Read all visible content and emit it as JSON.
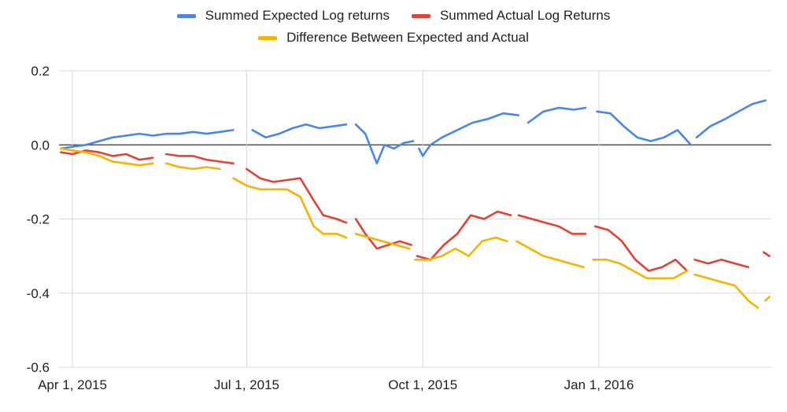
{
  "chart_data": {
    "type": "line",
    "title": "",
    "xlabel": "",
    "ylabel": "",
    "ylim": [
      -0.6,
      0.2
    ],
    "yticks": [
      0.2,
      0.0,
      -0.2,
      -0.4,
      -0.6
    ],
    "ytick_labels": [
      "0.2",
      "0.0",
      "-0.2",
      "-0.4",
      "-0.6"
    ],
    "xlim": [
      "2015-03-25",
      "2016-03-31"
    ],
    "xticks": [
      "2015-04-01",
      "2015-07-01",
      "2015-10-01",
      "2016-01-01"
    ],
    "xtick_labels": [
      "Apr 1, 2015",
      "Jul 1, 2015",
      "Oct 1, 2015",
      "Jan 1, 2016"
    ],
    "grid": true,
    "legend_position": "top",
    "series": [
      {
        "name": "Summed Expected Log returns",
        "color": "#4a86e8",
        "points": [
          [
            "2015-03-26",
            -0.01
          ],
          [
            "2015-04-01",
            -0.005
          ],
          [
            "2015-04-08",
            0.0
          ],
          [
            "2015-04-15",
            0.01
          ],
          [
            "2015-04-22",
            0.02
          ],
          [
            "2015-04-29",
            0.025
          ],
          [
            "2015-05-06",
            0.03
          ],
          [
            "2015-05-13",
            0.025
          ],
          [
            "2015-05-20",
            0.03
          ],
          [
            "2015-05-27",
            0.03
          ],
          [
            "2015-06-03",
            0.035
          ],
          [
            "2015-06-10",
            0.03
          ],
          [
            "2015-06-17",
            0.035
          ],
          [
            "2015-06-24",
            0.04
          ],
          null,
          [
            "2015-07-04",
            0.04
          ],
          [
            "2015-07-11",
            0.02
          ],
          [
            "2015-07-18",
            0.03
          ],
          [
            "2015-07-25",
            0.045
          ],
          [
            "2015-08-01",
            0.055
          ],
          [
            "2015-08-08",
            0.045
          ],
          [
            "2015-08-15",
            0.05
          ],
          [
            "2015-08-22",
            0.055
          ],
          null,
          [
            "2015-08-27",
            0.055
          ],
          [
            "2015-09-01",
            0.03
          ],
          [
            "2015-09-04",
            -0.01
          ],
          [
            "2015-09-07",
            -0.05
          ],
          [
            "2015-09-11",
            0.0
          ],
          [
            "2015-09-16",
            -0.01
          ],
          [
            "2015-09-21",
            0.005
          ],
          [
            "2015-09-26",
            0.01
          ],
          null,
          [
            "2015-09-29",
            -0.01
          ],
          [
            "2015-10-01",
            -0.03
          ],
          [
            "2015-10-05",
            0.0
          ],
          [
            "2015-10-11",
            0.02
          ],
          [
            "2015-10-19",
            0.04
          ],
          [
            "2015-10-27",
            0.06
          ],
          [
            "2015-11-04",
            0.07
          ],
          [
            "2015-11-12",
            0.085
          ],
          [
            "2015-11-20",
            0.08
          ],
          null,
          [
            "2015-11-25",
            0.06
          ],
          [
            "2015-12-03",
            0.09
          ],
          [
            "2015-12-11",
            0.1
          ],
          [
            "2015-12-19",
            0.095
          ],
          [
            "2015-12-25",
            0.1
          ],
          null,
          [
            "2015-12-31",
            0.09
          ],
          [
            "2016-01-07",
            0.085
          ],
          [
            "2016-01-14",
            0.05
          ],
          [
            "2016-01-21",
            0.02
          ],
          [
            "2016-01-28",
            0.01
          ],
          [
            "2016-02-04",
            0.02
          ],
          [
            "2016-02-11",
            0.04
          ],
          [
            "2016-02-18",
            0.0
          ],
          null,
          [
            "2016-02-21",
            0.02
          ],
          [
            "2016-02-28",
            0.05
          ],
          [
            "2016-03-07",
            0.07
          ],
          [
            "2016-03-14",
            0.09
          ],
          [
            "2016-03-21",
            0.11
          ],
          [
            "2016-03-28",
            0.12
          ]
        ]
      },
      {
        "name": "Summed Actual Log Returns",
        "color": "#e04336",
        "points": [
          [
            "2015-03-26",
            -0.02
          ],
          [
            "2015-04-01",
            -0.025
          ],
          [
            "2015-04-08",
            -0.015
          ],
          [
            "2015-04-15",
            -0.02
          ],
          [
            "2015-04-22",
            -0.03
          ],
          [
            "2015-04-29",
            -0.025
          ],
          [
            "2015-05-06",
            -0.04
          ],
          [
            "2015-05-13",
            -0.035
          ],
          null,
          [
            "2015-05-20",
            -0.025
          ],
          [
            "2015-05-27",
            -0.03
          ],
          [
            "2015-06-03",
            -0.03
          ],
          [
            "2015-06-10",
            -0.04
          ],
          [
            "2015-06-17",
            -0.045
          ],
          [
            "2015-06-24",
            -0.05
          ],
          null,
          [
            "2015-07-01",
            -0.065
          ],
          [
            "2015-07-08",
            -0.09
          ],
          [
            "2015-07-15",
            -0.1
          ],
          [
            "2015-07-22",
            -0.095
          ],
          [
            "2015-07-29",
            -0.09
          ],
          [
            "2015-08-05",
            -0.15
          ],
          [
            "2015-08-10",
            -0.19
          ],
          [
            "2015-08-17",
            -0.2
          ],
          [
            "2015-08-22",
            -0.21
          ],
          null,
          [
            "2015-08-27",
            -0.2
          ],
          [
            "2015-09-01",
            -0.24
          ],
          [
            "2015-09-07",
            -0.28
          ],
          [
            "2015-09-13",
            -0.27
          ],
          [
            "2015-09-19",
            -0.26
          ],
          [
            "2015-09-25",
            -0.27
          ],
          null,
          [
            "2015-09-28",
            -0.3
          ],
          [
            "2015-10-05",
            -0.31
          ],
          [
            "2015-10-12",
            -0.27
          ],
          [
            "2015-10-19",
            -0.24
          ],
          [
            "2015-10-26",
            -0.19
          ],
          [
            "2015-11-02",
            -0.2
          ],
          [
            "2015-11-09",
            -0.18
          ],
          [
            "2015-11-16",
            -0.19
          ],
          null,
          [
            "2015-11-20",
            -0.19
          ],
          [
            "2015-11-27",
            -0.2
          ],
          [
            "2015-12-04",
            -0.21
          ],
          [
            "2015-12-11",
            -0.22
          ],
          [
            "2015-12-18",
            -0.24
          ],
          [
            "2015-12-25",
            -0.24
          ],
          null,
          [
            "2015-12-30",
            -0.22
          ],
          [
            "2016-01-06",
            -0.23
          ],
          [
            "2016-01-13",
            -0.26
          ],
          [
            "2016-01-20",
            -0.31
          ],
          [
            "2016-01-27",
            -0.34
          ],
          [
            "2016-02-03",
            -0.33
          ],
          [
            "2016-02-10",
            -0.31
          ],
          [
            "2016-02-16",
            -0.34
          ],
          null,
          [
            "2016-02-20",
            -0.31
          ],
          [
            "2016-02-27",
            -0.32
          ],
          [
            "2016-03-05",
            -0.31
          ],
          [
            "2016-03-12",
            -0.32
          ],
          [
            "2016-03-19",
            -0.33
          ],
          null,
          [
            "2016-03-27",
            -0.29
          ],
          [
            "2016-03-30",
            -0.3
          ]
        ]
      },
      {
        "name": "Difference Between Expected and Actual",
        "color": "#f4b400",
        "points": [
          [
            "2015-03-26",
            -0.01
          ],
          [
            "2015-04-01",
            -0.015
          ],
          [
            "2015-04-08",
            -0.02
          ],
          [
            "2015-04-15",
            -0.03
          ],
          [
            "2015-04-22",
            -0.045
          ],
          [
            "2015-04-29",
            -0.05
          ],
          [
            "2015-05-06",
            -0.055
          ],
          [
            "2015-05-13",
            -0.05
          ],
          null,
          [
            "2015-05-20",
            -0.05
          ],
          [
            "2015-05-27",
            -0.06
          ],
          [
            "2015-06-03",
            -0.065
          ],
          [
            "2015-06-10",
            -0.06
          ],
          [
            "2015-06-17",
            -0.065
          ],
          null,
          [
            "2015-06-24",
            -0.09
          ],
          [
            "2015-07-01",
            -0.11
          ],
          [
            "2015-07-08",
            -0.12
          ],
          [
            "2015-07-15",
            -0.12
          ],
          [
            "2015-07-22",
            -0.12
          ],
          [
            "2015-07-29",
            -0.14
          ],
          [
            "2015-08-05",
            -0.22
          ],
          [
            "2015-08-10",
            -0.24
          ],
          [
            "2015-08-17",
            -0.24
          ],
          [
            "2015-08-22",
            -0.25
          ],
          null,
          [
            "2015-08-27",
            -0.24
          ],
          [
            "2015-09-03",
            -0.25
          ],
          [
            "2015-09-10",
            -0.26
          ],
          [
            "2015-09-17",
            -0.27
          ],
          [
            "2015-09-24",
            -0.28
          ],
          null,
          [
            "2015-09-27",
            -0.31
          ],
          [
            "2015-10-04",
            -0.31
          ],
          [
            "2015-10-11",
            -0.3
          ],
          [
            "2015-10-18",
            -0.28
          ],
          [
            "2015-10-25",
            -0.3
          ],
          [
            "2015-11-01",
            -0.26
          ],
          [
            "2015-11-08",
            -0.25
          ],
          [
            "2015-11-14",
            -0.26
          ],
          null,
          [
            "2015-11-19",
            -0.26
          ],
          [
            "2015-11-26",
            -0.28
          ],
          [
            "2015-12-03",
            -0.3
          ],
          [
            "2015-12-10",
            -0.31
          ],
          [
            "2015-12-17",
            -0.32
          ],
          [
            "2015-12-24",
            -0.33
          ],
          null,
          [
            "2015-12-29",
            -0.31
          ],
          [
            "2016-01-05",
            -0.31
          ],
          [
            "2016-01-12",
            -0.32
          ],
          [
            "2016-01-19",
            -0.34
          ],
          [
            "2016-01-26",
            -0.36
          ],
          [
            "2016-02-02",
            -0.36
          ],
          [
            "2016-02-09",
            -0.36
          ],
          [
            "2016-02-16",
            -0.34
          ],
          null,
          [
            "2016-02-20",
            -0.35
          ],
          [
            "2016-02-27",
            -0.36
          ],
          [
            "2016-03-05",
            -0.37
          ],
          [
            "2016-03-12",
            -0.38
          ],
          [
            "2016-03-19",
            -0.42
          ],
          [
            "2016-03-24",
            -0.44
          ],
          null,
          [
            "2016-03-28",
            -0.42
          ],
          [
            "2016-03-30",
            -0.41
          ]
        ]
      }
    ]
  }
}
